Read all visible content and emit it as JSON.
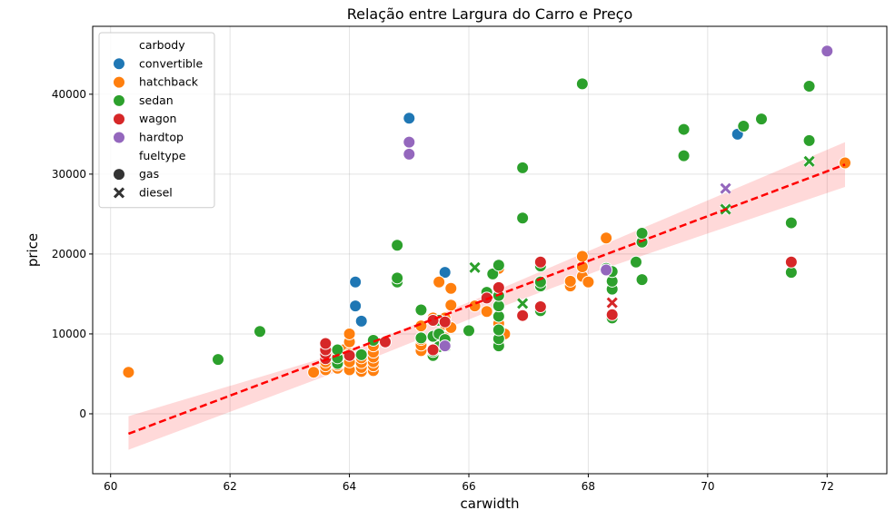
{
  "chart_data": {
    "type": "scatter",
    "title": "Relação entre Largura do Carro e Preço",
    "xlabel": "carwidth",
    "ylabel": "price",
    "xlim": [
      59.7,
      73.0
    ],
    "ylim": [
      -7500,
      48500
    ],
    "xticks": [
      60,
      62,
      64,
      66,
      68,
      70,
      72
    ],
    "yticks": [
      0,
      10000,
      20000,
      30000,
      40000
    ],
    "grid": true,
    "legend_position": "top-left",
    "legend": {
      "hue_title": "carbody",
      "style_title": "fueltype",
      "hue_entries": [
        {
          "name": "convertible",
          "color": "#1f77b4"
        },
        {
          "name": "hatchback",
          "color": "#ff7f0e"
        },
        {
          "name": "sedan",
          "color": "#2ca02c"
        },
        {
          "name": "wagon",
          "color": "#d62728"
        },
        {
          "name": "hardtop",
          "color": "#9467bd"
        }
      ],
      "style_entries": [
        {
          "name": "gas",
          "marker": "circle"
        },
        {
          "name": "diesel",
          "marker": "x"
        }
      ]
    },
    "regression": {
      "color": "#ff0000",
      "line": [
        [
          60.3,
          -2500
        ],
        [
          72.3,
          31200
        ]
      ],
      "ci_upper": [
        [
          60.3,
          -300
        ],
        [
          64.2,
          8400
        ],
        [
          66.2,
          14600
        ],
        [
          68.2,
          21000
        ],
        [
          72.3,
          34000
        ]
      ],
      "ci_lower": [
        [
          60.3,
          -4500
        ],
        [
          64.2,
          6400
        ],
        [
          66.2,
          12400
        ],
        [
          68.2,
          18000
        ],
        [
          72.3,
          28400
        ]
      ]
    },
    "series": [
      {
        "name": "convertible",
        "points": [
          [
            65.0,
            37000,
            "gas"
          ],
          [
            64.1,
            16500,
            "gas"
          ],
          [
            64.1,
            13500,
            "gas"
          ],
          [
            64.2,
            11600,
            "gas"
          ],
          [
            65.6,
            17700,
            "gas"
          ],
          [
            70.5,
            35000,
            "gas"
          ],
          [
            63.8,
            7200,
            "gas"
          ]
        ]
      },
      {
        "name": "hatchback",
        "points": [
          [
            60.3,
            5200,
            "gas"
          ],
          [
            63.4,
            5200,
            "gas"
          ],
          [
            63.6,
            5500,
            "gas"
          ],
          [
            63.6,
            6000,
            "gas"
          ],
          [
            63.6,
            6500,
            "gas"
          ],
          [
            63.8,
            5700,
            "gas"
          ],
          [
            63.8,
            6100,
            "gas"
          ],
          [
            63.8,
            6500,
            "gas"
          ],
          [
            63.8,
            7000,
            "gas"
          ],
          [
            63.8,
            7500,
            "gas"
          ],
          [
            63.9,
            8000,
            "gas"
          ],
          [
            64.0,
            5500,
            "gas"
          ],
          [
            64.0,
            6500,
            "gas"
          ],
          [
            64.0,
            7500,
            "gas"
          ],
          [
            64.0,
            9000,
            "gas"
          ],
          [
            64.0,
            10000,
            "gas"
          ],
          [
            64.2,
            5300,
            "gas"
          ],
          [
            64.2,
            5800,
            "gas"
          ],
          [
            64.2,
            6400,
            "gas"
          ],
          [
            64.2,
            7000,
            "gas"
          ],
          [
            64.4,
            5400,
            "gas"
          ],
          [
            64.4,
            6000,
            "gas"
          ],
          [
            64.4,
            6500,
            "gas"
          ],
          [
            64.4,
            7100,
            "gas"
          ],
          [
            64.4,
            7700,
            "gas"
          ],
          [
            64.4,
            8500,
            "gas"
          ],
          [
            65.2,
            7900,
            "gas"
          ],
          [
            65.2,
            8600,
            "gas"
          ],
          [
            65.2,
            9300,
            "gas"
          ],
          [
            65.2,
            11000,
            "gas"
          ],
          [
            65.4,
            12000,
            "gas"
          ],
          [
            65.5,
            16500,
            "gas"
          ],
          [
            65.6,
            9500,
            "gas"
          ],
          [
            65.6,
            11200,
            "gas"
          ],
          [
            65.6,
            12000,
            "gas"
          ],
          [
            65.7,
            10800,
            "gas"
          ],
          [
            65.7,
            13600,
            "gas"
          ],
          [
            65.7,
            15700,
            "gas"
          ],
          [
            66.3,
            12800,
            "gas"
          ],
          [
            66.3,
            14500,
            "gas"
          ],
          [
            66.5,
            18200,
            "gas"
          ],
          [
            66.5,
            9000,
            "gas"
          ],
          [
            66.5,
            11300,
            "gas"
          ],
          [
            66.6,
            10000,
            "gas"
          ],
          [
            67.7,
            16000,
            "gas"
          ],
          [
            67.7,
            16600,
            "gas"
          ],
          [
            67.9,
            17200,
            "gas"
          ],
          [
            67.9,
            18400,
            "gas"
          ],
          [
            67.9,
            19700,
            "gas"
          ],
          [
            68.0,
            16500,
            "gas"
          ],
          [
            68.3,
            22000,
            "gas"
          ],
          [
            72.3,
            31400,
            "gas"
          ],
          [
            66.1,
            13500,
            "gas"
          ]
        ]
      },
      {
        "name": "sedan",
        "points": [
          [
            61.8,
            6800,
            "gas"
          ],
          [
            62.5,
            10300,
            "gas"
          ],
          [
            63.8,
            6300,
            "gas"
          ],
          [
            63.8,
            7000,
            "gas"
          ],
          [
            63.8,
            8000,
            "gas"
          ],
          [
            64.2,
            7400,
            "gas"
          ],
          [
            64.4,
            9200,
            "gas"
          ],
          [
            64.8,
            16500,
            "gas"
          ],
          [
            64.8,
            17000,
            "gas"
          ],
          [
            64.8,
            21100,
            "gas"
          ],
          [
            65.2,
            9500,
            "gas"
          ],
          [
            65.2,
            13000,
            "gas"
          ],
          [
            65.4,
            7300,
            "gas"
          ],
          [
            65.4,
            7800,
            "gas"
          ],
          [
            65.4,
            9700,
            "gas"
          ],
          [
            65.5,
            8400,
            "gas"
          ],
          [
            65.5,
            10000,
            "gas"
          ],
          [
            65.5,
            11700,
            "gas"
          ],
          [
            65.6,
            8500,
            "diesel"
          ],
          [
            65.6,
            9300,
            "gas"
          ],
          [
            66.0,
            10400,
            "gas"
          ],
          [
            66.1,
            18300,
            "diesel"
          ],
          [
            66.3,
            15200,
            "gas"
          ],
          [
            66.4,
            17500,
            "gas"
          ],
          [
            66.5,
            8500,
            "gas"
          ],
          [
            66.5,
            9400,
            "gas"
          ],
          [
            66.5,
            10500,
            "gas"
          ],
          [
            66.5,
            12200,
            "gas"
          ],
          [
            66.5,
            13500,
            "gas"
          ],
          [
            66.5,
            14800,
            "gas"
          ],
          [
            66.5,
            18600,
            "gas"
          ],
          [
            66.9,
            13800,
            "diesel"
          ],
          [
            66.9,
            24500,
            "gas"
          ],
          [
            66.9,
            30800,
            "gas"
          ],
          [
            67.2,
            12900,
            "gas"
          ],
          [
            67.2,
            16000,
            "gas"
          ],
          [
            67.2,
            16500,
            "gas"
          ],
          [
            67.2,
            18500,
            "gas"
          ],
          [
            67.9,
            41300,
            "gas"
          ],
          [
            68.3,
            18200,
            "gas"
          ],
          [
            68.4,
            12000,
            "gas"
          ],
          [
            68.4,
            15600,
            "gas"
          ],
          [
            68.4,
            16600,
            "gas"
          ],
          [
            68.4,
            17800,
            "gas"
          ],
          [
            68.8,
            19000,
            "gas"
          ],
          [
            68.9,
            16800,
            "gas"
          ],
          [
            68.9,
            21500,
            "gas"
          ],
          [
            68.9,
            22600,
            "gas"
          ],
          [
            69.6,
            32300,
            "gas"
          ],
          [
            69.6,
            35600,
            "gas"
          ],
          [
            70.3,
            25600,
            "diesel"
          ],
          [
            70.6,
            36000,
            "gas"
          ],
          [
            70.9,
            36900,
            "gas"
          ],
          [
            71.4,
            17700,
            "gas"
          ],
          [
            71.4,
            23900,
            "gas"
          ],
          [
            71.7,
            34200,
            "gas"
          ],
          [
            71.7,
            41000,
            "gas"
          ],
          [
            71.7,
            31600,
            "diesel"
          ]
        ]
      },
      {
        "name": "wagon",
        "points": [
          [
            63.6,
            6900,
            "gas"
          ],
          [
            63.6,
            7500,
            "gas"
          ],
          [
            63.6,
            8000,
            "gas"
          ],
          [
            63.6,
            8800,
            "gas"
          ],
          [
            64.0,
            7300,
            "gas"
          ],
          [
            64.6,
            9000,
            "gas"
          ],
          [
            65.4,
            8000,
            "gas"
          ],
          [
            65.4,
            11700,
            "gas"
          ],
          [
            65.6,
            11500,
            "gas"
          ],
          [
            66.3,
            14500,
            "gas"
          ],
          [
            66.5,
            15800,
            "gas"
          ],
          [
            66.9,
            12300,
            "gas"
          ],
          [
            67.2,
            13400,
            "gas"
          ],
          [
            67.2,
            19000,
            "gas"
          ],
          [
            68.4,
            12400,
            "gas"
          ],
          [
            68.4,
            13900,
            "diesel"
          ],
          [
            71.4,
            19000,
            "gas"
          ]
        ]
      },
      {
        "name": "hardtop",
        "points": [
          [
            65.0,
            34000,
            "gas"
          ],
          [
            65.0,
            32500,
            "gas"
          ],
          [
            65.6,
            8500,
            "gas"
          ],
          [
            70.3,
            28200,
            "diesel"
          ],
          [
            72.0,
            45400,
            "gas"
          ],
          [
            68.3,
            18000,
            "gas"
          ]
        ]
      }
    ]
  }
}
